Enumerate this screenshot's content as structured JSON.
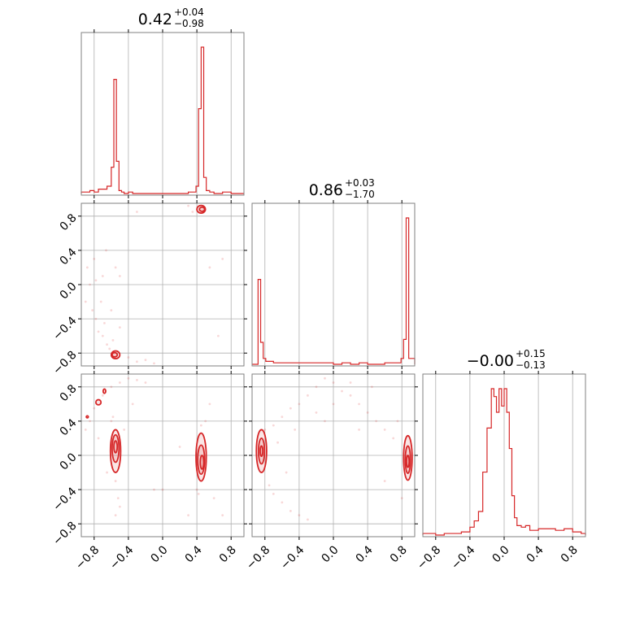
{
  "chart_data": {
    "type": "corner",
    "color": "#d62728",
    "params": [
      "p0",
      "p1",
      "p2"
    ],
    "range": [
      -0.95,
      0.95
    ],
    "ticks": [
      -0.8,
      -0.4,
      0.0,
      0.4,
      0.8
    ],
    "tick_labels": [
      "−0.8",
      "−0.4",
      "0.0",
      "0.4",
      "0.8"
    ],
    "grid": true,
    "titles": [
      {
        "value": "0.42",
        "plus": "+0.04",
        "minus": "−0.98"
      },
      {
        "value": "0.86",
        "plus": "+0.03",
        "minus": "−1.70"
      },
      {
        "value": "−0.00",
        "plus": "+0.15",
        "minus": "−0.13"
      }
    ],
    "histograms": [
      {
        "bins_x": [
          -0.95,
          -0.9,
          -0.85,
          -0.8,
          -0.75,
          -0.7,
          -0.65,
          -0.6,
          -0.57,
          -0.54,
          -0.51,
          -0.48,
          -0.45,
          -0.4,
          -0.35,
          -0.3,
          -0.2,
          -0.1,
          0.0,
          0.1,
          0.2,
          0.3,
          0.36,
          0.39,
          0.42,
          0.45,
          0.48,
          0.51,
          0.55,
          0.6,
          0.7,
          0.8,
          0.95
        ],
        "counts": [
          0.01,
          0.01,
          0.02,
          0.01,
          0.03,
          0.03,
          0.05,
          0.18,
          0.78,
          0.22,
          0.02,
          0.01,
          0.0,
          0.01,
          0.0,
          0.0,
          0.0,
          0.0,
          0.0,
          0.0,
          0.0,
          0.01,
          0.01,
          0.05,
          0.58,
          1.0,
          0.11,
          0.02,
          0.01,
          0.0,
          0.01,
          0.0
        ]
      },
      {
        "bins_x": [
          -0.95,
          -0.88,
          -0.85,
          -0.82,
          -0.79,
          -0.76,
          -0.7,
          -0.6,
          -0.5,
          -0.4,
          -0.3,
          -0.2,
          -0.1,
          0.0,
          0.1,
          0.2,
          0.3,
          0.4,
          0.5,
          0.6,
          0.7,
          0.76,
          0.79,
          0.82,
          0.85,
          0.88,
          0.95
        ],
        "counts": [
          0.0,
          0.58,
          0.15,
          0.04,
          0.02,
          0.02,
          0.01,
          0.01,
          0.01,
          0.01,
          0.01,
          0.01,
          0.01,
          0.0,
          0.01,
          0.0,
          0.01,
          0.0,
          0.0,
          0.01,
          0.01,
          0.01,
          0.04,
          0.17,
          1.0,
          0.04
        ]
      },
      {
        "bins_x": [
          -0.95,
          -0.9,
          -0.8,
          -0.7,
          -0.6,
          -0.5,
          -0.4,
          -0.35,
          -0.3,
          -0.25,
          -0.2,
          -0.15,
          -0.12,
          -0.09,
          -0.06,
          -0.03,
          0.0,
          0.03,
          0.06,
          0.09,
          0.12,
          0.15,
          0.2,
          0.25,
          0.3,
          0.4,
          0.5,
          0.6,
          0.7,
          0.8,
          0.9,
          0.95
        ],
        "counts": [
          0.01,
          0.01,
          0.0,
          0.01,
          0.01,
          0.02,
          0.05,
          0.09,
          0.15,
          0.4,
          0.68,
          0.93,
          0.88,
          0.78,
          0.93,
          0.82,
          0.93,
          0.78,
          0.55,
          0.25,
          0.11,
          0.06,
          0.05,
          0.06,
          0.03,
          0.04,
          0.04,
          0.03,
          0.04,
          0.02,
          0.01
        ]
      }
    ],
    "scatter": [
      {
        "panel": "p1-vs-p0",
        "contours": [
          {
            "cx": 0.45,
            "cy": 0.88,
            "rx": 0.05,
            "ry": 0.045
          },
          {
            "cx": 0.46,
            "cy": 0.88,
            "rx": 0.03,
            "ry": 0.025
          },
          {
            "cx": -0.55,
            "cy": -0.82,
            "rx": 0.05,
            "ry": 0.045
          },
          {
            "cx": -0.56,
            "cy": -0.82,
            "rx": 0.03,
            "ry": 0.025
          }
        ],
        "points": [
          [
            -0.9,
            -0.2
          ],
          [
            -0.85,
            0.0
          ],
          [
            -0.82,
            -0.3
          ],
          [
            -0.78,
            -0.4
          ],
          [
            -0.75,
            -0.55
          ],
          [
            -0.7,
            -0.6
          ],
          [
            -0.65,
            -0.7
          ],
          [
            -0.62,
            -0.75
          ],
          [
            -0.88,
            0.2
          ],
          [
            -0.8,
            0.3
          ],
          [
            -0.7,
            0.1
          ],
          [
            -0.6,
            -0.3
          ],
          [
            -0.72,
            -0.2
          ],
          [
            -0.66,
            0.4
          ],
          [
            -0.55,
            0.2
          ],
          [
            -0.5,
            -0.5
          ],
          [
            -0.4,
            -0.85
          ],
          [
            -0.3,
            -0.9
          ],
          [
            -0.2,
            -0.88
          ],
          [
            -0.1,
            -0.92
          ],
          [
            0.3,
            0.92
          ],
          [
            0.35,
            0.85
          ],
          [
            0.55,
            0.2
          ],
          [
            0.65,
            -0.6
          ],
          [
            0.7,
            0.3
          ],
          [
            -0.3,
            0.85
          ],
          [
            -0.5,
            0.1
          ],
          [
            -0.78,
            0.05
          ],
          [
            -0.68,
            -0.45
          ],
          [
            -0.58,
            -0.65
          ]
        ]
      },
      {
        "panel": "p2-vs-p0",
        "contours": [
          {
            "cx": -0.55,
            "cy": 0.05,
            "rx": 0.06,
            "ry": 0.25
          },
          {
            "cx": -0.55,
            "cy": 0.08,
            "rx": 0.04,
            "ry": 0.16
          },
          {
            "cx": -0.55,
            "cy": 0.1,
            "rx": 0.02,
            "ry": 0.07
          },
          {
            "cx": 0.45,
            "cy": -0.02,
            "rx": 0.06,
            "ry": 0.28
          },
          {
            "cx": 0.45,
            "cy": -0.05,
            "rx": 0.04,
            "ry": 0.17
          },
          {
            "cx": 0.46,
            "cy": -0.08,
            "rx": 0.02,
            "ry": 0.08
          },
          {
            "cx": -0.75,
            "cy": 0.62,
            "rx": 0.03,
            "ry": 0.03
          },
          {
            "cx": -0.68,
            "cy": 0.75,
            "rx": 0.015,
            "ry": 0.025
          },
          {
            "cx": -0.88,
            "cy": 0.45,
            "rx": 0.012,
            "ry": 0.012
          }
        ],
        "points": [
          [
            -0.9,
            0.3
          ],
          [
            -0.85,
            0.4
          ],
          [
            -0.8,
            0.55
          ],
          [
            -0.7,
            0.7
          ],
          [
            -0.6,
            0.8
          ],
          [
            -0.5,
            0.85
          ],
          [
            -0.4,
            0.9
          ],
          [
            -0.3,
            0.88
          ],
          [
            -0.55,
            -0.3
          ],
          [
            -0.52,
            -0.5
          ],
          [
            -0.5,
            -0.6
          ],
          [
            -0.55,
            -0.7
          ],
          [
            -0.6,
            0.4
          ],
          [
            -0.45,
            0.3
          ],
          [
            0.4,
            -0.4
          ],
          [
            0.5,
            0.4
          ],
          [
            0.6,
            -0.5
          ],
          [
            0.3,
            -0.7
          ],
          [
            -0.1,
            -0.4
          ],
          [
            0.0,
            -0.4
          ],
          [
            0.7,
            -0.7
          ],
          [
            0.2,
            0.1
          ],
          [
            -0.75,
            0.2
          ],
          [
            -0.65,
            -0.2
          ],
          [
            0.55,
            0.6
          ],
          [
            -0.2,
            0.85
          ],
          [
            -0.35,
            0.6
          ],
          [
            0.45,
            0.35
          ],
          [
            0.42,
            -0.45
          ],
          [
            -0.58,
            0.45
          ]
        ]
      },
      {
        "panel": "p2-vs-p1",
        "contours": [
          {
            "cx": -0.84,
            "cy": 0.05,
            "rx": 0.06,
            "ry": 0.25
          },
          {
            "cx": -0.84,
            "cy": 0.05,
            "rx": 0.035,
            "ry": 0.15
          },
          {
            "cx": -0.84,
            "cy": 0.05,
            "rx": 0.015,
            "ry": 0.06
          },
          {
            "cx": 0.87,
            "cy": -0.03,
            "rx": 0.05,
            "ry": 0.26
          },
          {
            "cx": 0.87,
            "cy": -0.05,
            "rx": 0.03,
            "ry": 0.16
          },
          {
            "cx": 0.87,
            "cy": -0.07,
            "rx": 0.015,
            "ry": 0.07
          }
        ],
        "points": [
          [
            -0.8,
            0.3
          ],
          [
            -0.7,
            0.35
          ],
          [
            -0.6,
            0.45
          ],
          [
            -0.5,
            0.55
          ],
          [
            -0.4,
            0.6
          ],
          [
            -0.3,
            0.7
          ],
          [
            -0.2,
            0.8
          ],
          [
            -0.1,
            0.9
          ],
          [
            0.0,
            0.85
          ],
          [
            0.1,
            0.75
          ],
          [
            0.2,
            0.7
          ],
          [
            0.3,
            0.6
          ],
          [
            0.4,
            0.5
          ],
          [
            0.5,
            0.4
          ],
          [
            0.6,
            0.3
          ],
          [
            0.7,
            0.2
          ],
          [
            -0.75,
            -0.35
          ],
          [
            -0.7,
            -0.45
          ],
          [
            -0.6,
            -0.55
          ],
          [
            -0.5,
            -0.65
          ],
          [
            -0.4,
            -0.7
          ],
          [
            -0.3,
            -0.75
          ],
          [
            0.8,
            -0.5
          ],
          [
            0.75,
            0.4
          ],
          [
            -0.2,
            0.5
          ],
          [
            0.0,
            0.6
          ],
          [
            0.2,
            0.85
          ],
          [
            -0.45,
            0.3
          ],
          [
            -0.65,
            0.15
          ],
          [
            0.6,
            -0.3
          ],
          [
            0.3,
            0.3
          ],
          [
            -0.1,
            0.4
          ],
          [
            0.45,
            0.8
          ],
          [
            -0.55,
            -0.2
          ]
        ]
      }
    ]
  }
}
